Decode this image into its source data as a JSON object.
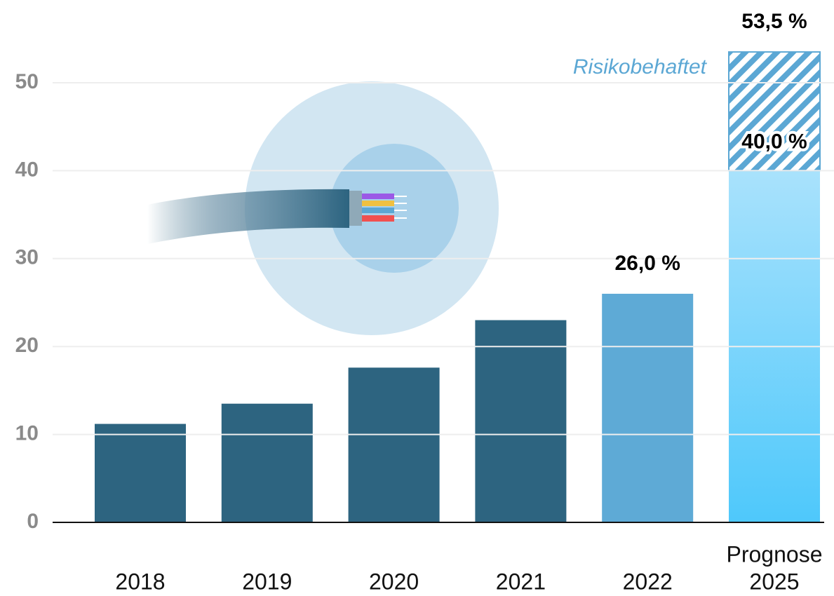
{
  "chart_data": {
    "type": "bar",
    "categories": [
      "2018",
      "2019",
      "2020",
      "2021",
      "2022",
      "2025"
    ],
    "category_notes": [
      null,
      null,
      null,
      null,
      null,
      "Prognose"
    ],
    "series": [
      {
        "values": [
          11.2,
          13.5,
          17.6,
          23.0,
          26.0,
          40.0
        ],
        "colors": [
          "#2d6480",
          "#2d6480",
          "#2d6480",
          "#2d6480",
          "#5eaad6",
          "#8fd8fc"
        ],
        "value_labels": [
          null,
          null,
          null,
          null,
          "26,0 %",
          "40,0 %"
        ]
      },
      {
        "name": "Risikobehaftet",
        "color": "#5ba7d4",
        "hatch": true,
        "values": [
          null,
          null,
          null,
          null,
          null,
          13.5
        ]
      }
    ],
    "totals": [
      null,
      null,
      null,
      null,
      null,
      53.5
    ],
    "total_labels": [
      null,
      null,
      null,
      null,
      null,
      "53,5 %"
    ],
    "ylim": [
      0,
      55
    ],
    "yticks": [
      0,
      10,
      20,
      30,
      40,
      50
    ],
    "grid": true
  }
}
